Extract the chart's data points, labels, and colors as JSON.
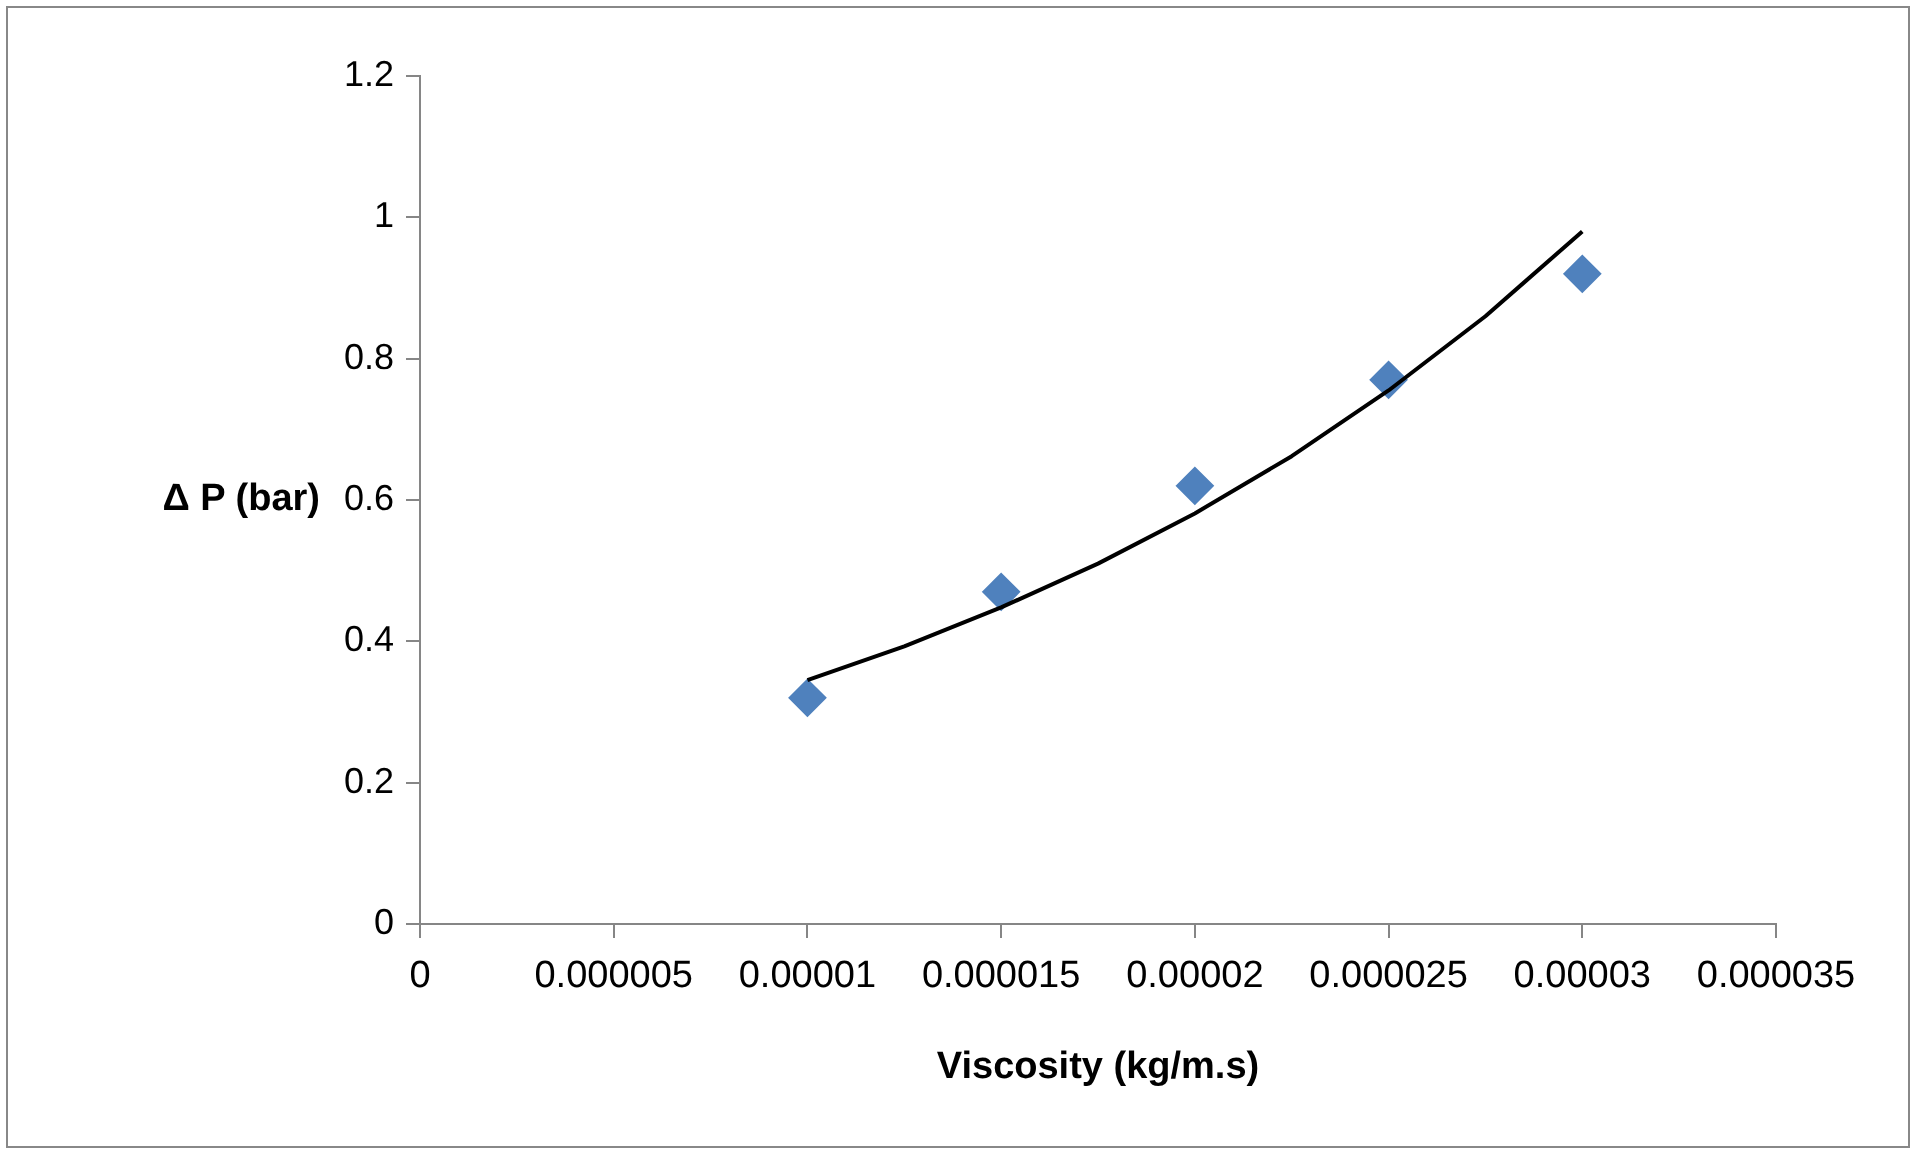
{
  "chart_data": {
    "type": "scatter",
    "xlabel": "Viscosity (kg/m.s)",
    "ylabel": "Δ P (bar)",
    "xlim": [
      0,
      3.5e-05
    ],
    "xticks": [
      0,
      {
        "value": 5e-06,
        "label": "0.000005"
      },
      {
        "value": 1e-05,
        "label": "0.00001"
      },
      {
        "value": 1.5e-05,
        "label": "0.000015"
      },
      {
        "value": 2e-05,
        "label": "0.00002"
      },
      {
        "value": 2.5e-05,
        "label": "0.000025"
      },
      {
        "value": 3e-05,
        "label": "0.00003"
      },
      {
        "value": 3.5e-05,
        "label": "0.000035"
      }
    ],
    "ylim": [
      0,
      1.2
    ],
    "yticks": [
      0,
      0.2,
      0.4,
      0.6,
      0.8,
      1,
      1.2
    ],
    "grid": false,
    "legend": false,
    "marker": "diamond",
    "series": [
      {
        "type": "scatter",
        "color": "#4f81bd",
        "x": [
          1e-05,
          1.5e-05,
          2e-05,
          2.5e-05,
          3e-05
        ],
        "values": [
          0.32,
          0.47,
          0.62,
          0.77,
          0.92
        ]
      },
      {
        "type": "line",
        "color": "#000000",
        "marker": "none",
        "line_style": "solid",
        "x": [
          1e-05,
          1.25e-05,
          1.5e-05,
          1.75e-05,
          2e-05,
          2.25e-05,
          2.5e-05,
          2.75e-05,
          3e-05
        ],
        "values": [
          0.345,
          0.393,
          0.448,
          0.51,
          0.581,
          0.662,
          0.755,
          0.86,
          0.98
        ]
      }
    ]
  }
}
